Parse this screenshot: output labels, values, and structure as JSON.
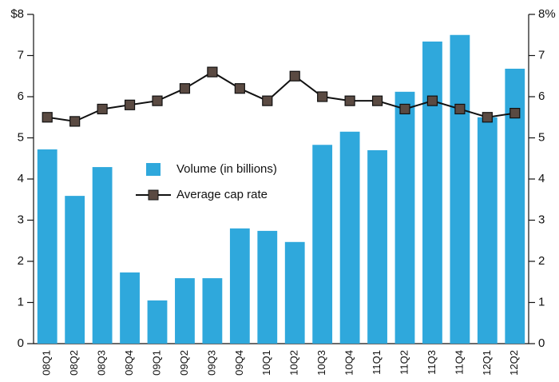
{
  "chart_data": {
    "type": "bar_line",
    "categories": [
      "08Q1",
      "08Q2",
      "08Q3",
      "08Q4",
      "09Q1",
      "09Q2",
      "09Q3",
      "09Q4",
      "10Q1",
      "10Q2",
      "10Q3",
      "10Q4",
      "11Q1",
      "11Q2",
      "11Q3",
      "11Q4",
      "12Q1",
      "12Q2"
    ],
    "series": [
      {
        "name": "Volume (in billions)",
        "color": "#2fa8dc",
        "type": "bar",
        "values": [
          4.72,
          3.59,
          4.29,
          1.73,
          1.05,
          1.59,
          1.59,
          2.8,
          2.74,
          2.47,
          4.83,
          5.15,
          4.7,
          6.12,
          7.34,
          7.5,
          5.5,
          6.68
        ]
      },
      {
        "name": "Average cap rate",
        "color": "#111111",
        "marker_color": "#5a4a42",
        "type": "line",
        "axis": "y2",
        "values": [
          5.5,
          5.4,
          5.7,
          5.8,
          5.9,
          6.2,
          6.6,
          6.2,
          5.9,
          6.5,
          6.0,
          5.9,
          5.9,
          5.7,
          5.9,
          5.7,
          5.5,
          5.6
        ]
      }
    ],
    "ylim": [
      0,
      8
    ],
    "yticks": [
      0,
      1,
      2,
      3,
      4,
      5,
      6,
      7,
      {
        "value": 8,
        "label": "$8"
      }
    ],
    "y2lim": [
      0,
      8
    ],
    "y2ticks": [
      0,
      1,
      2,
      3,
      4,
      5,
      6,
      7,
      {
        "value": 8,
        "label": "8%"
      }
    ],
    "grid": false
  }
}
